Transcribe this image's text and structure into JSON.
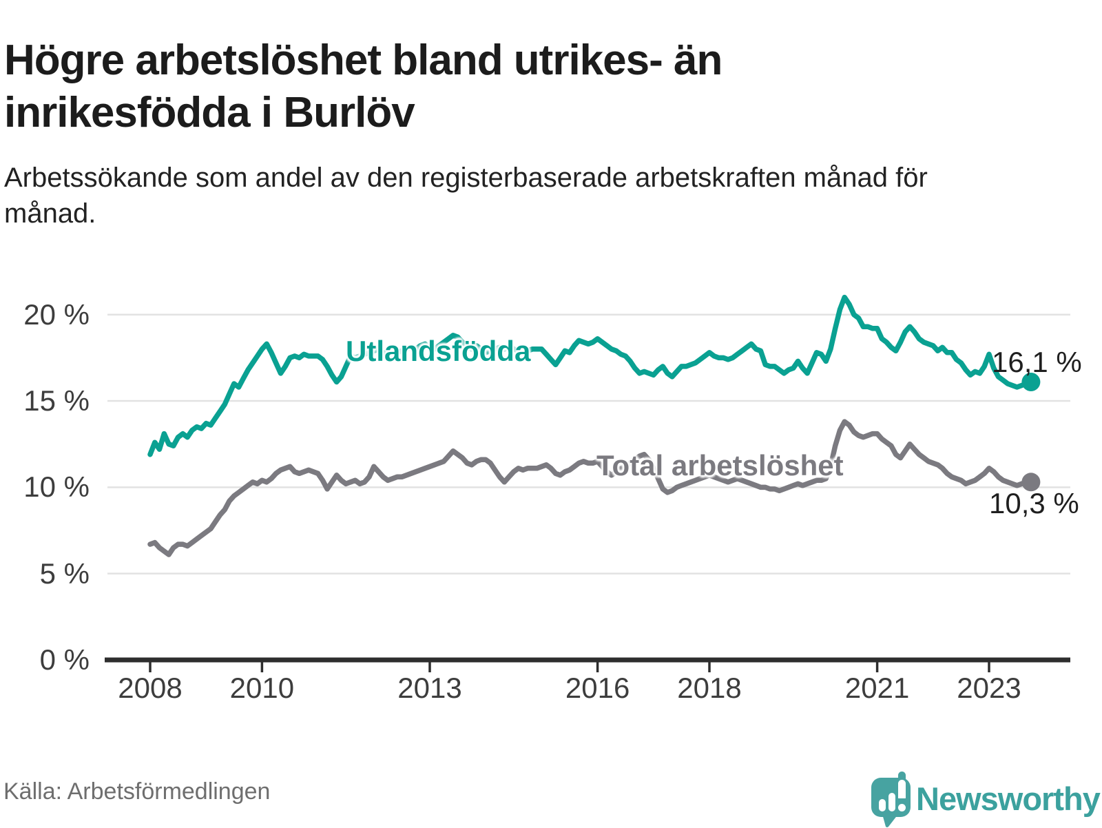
{
  "title": "Högre arbetslöshet bland utrikes- än inrikesfödda i Burlöv",
  "subtitle": "Arbetssökande som andel av den registerbaserade arbetskraften månad för månad.",
  "source": "Källa: Arbetsförmedlingen",
  "brand": {
    "name": "Newsworthy",
    "icon": "newsworthy-pin-barchart-icon",
    "color": "#3ca19e",
    "icon_color": "#47a3a1"
  },
  "colors": {
    "utlandsfodda": "#0aa192",
    "total": "#7b7a80",
    "grid": "#e2e2e2",
    "axis": "#2e2e2e",
    "title_text": "#1c1c1c",
    "tick_text": "#3d3d3d",
    "value_text": "#1f1f1f",
    "source_text": "#6e6e6e"
  },
  "chart_data": {
    "type": "line",
    "unit": "%",
    "x_start": {
      "year": 2008,
      "month": 1
    },
    "x_end": {
      "year": 2023,
      "month": 10
    },
    "ylim": [
      0,
      22
    ],
    "grid": "horizontal",
    "y_axis": [
      {
        "value": 0,
        "label": "0 %"
      },
      {
        "value": 5,
        "label": "5 %"
      },
      {
        "value": 10,
        "label": "10 %"
      },
      {
        "value": 15,
        "label": "15 %"
      },
      {
        "value": 20,
        "label": "20 %"
      }
    ],
    "x_ticks": [
      {
        "year": 2008,
        "label": "2008"
      },
      {
        "year": 2010,
        "label": "2010"
      },
      {
        "year": 2013,
        "label": "2013"
      },
      {
        "year": 2016,
        "label": "2016"
      },
      {
        "year": 2018,
        "label": "2018"
      },
      {
        "year": 2021,
        "label": "2021"
      },
      {
        "year": 2023,
        "label": "2023"
      }
    ],
    "series": [
      {
        "name": "Utlandsfödda",
        "color": "#0aa192",
        "end_label": "16,1 %",
        "end_value": 16.1,
        "values": [
          11.9,
          12.6,
          12.2,
          13.1,
          12.5,
          12.4,
          12.9,
          13.1,
          12.9,
          13.3,
          13.5,
          13.4,
          13.7,
          13.6,
          14.0,
          14.4,
          14.8,
          15.4,
          16.0,
          15.8,
          16.3,
          16.8,
          17.2,
          17.6,
          18.0,
          18.3,
          17.8,
          17.2,
          16.6,
          17.0,
          17.5,
          17.6,
          17.5,
          17.7,
          17.6,
          17.6,
          17.6,
          17.4,
          17.0,
          16.5,
          16.1,
          16.4,
          17.0,
          17.6,
          17.5,
          17.6,
          17.7,
          17.8,
          17.9,
          18.0,
          17.8,
          17.7,
          17.6,
          17.8,
          17.9,
          18.0,
          18.1,
          18.0,
          18.2,
          18.3,
          18.1,
          18.0,
          18.2,
          18.4,
          18.6,
          18.8,
          18.7,
          18.4,
          18.2,
          18.0,
          18.2,
          18.0,
          17.8,
          17.9,
          18.0,
          18.1,
          18.0,
          18.2,
          18.0,
          17.9,
          17.8,
          17.9,
          18.0,
          18.0,
          18.0,
          17.7,
          17.4,
          17.1,
          17.5,
          17.9,
          17.8,
          18.2,
          18.5,
          18.4,
          18.3,
          18.4,
          18.6,
          18.4,
          18.2,
          18.0,
          17.9,
          17.7,
          17.6,
          17.3,
          16.9,
          16.6,
          16.7,
          16.6,
          16.5,
          16.8,
          17.0,
          16.6,
          16.4,
          16.7,
          17.0,
          17.0,
          17.1,
          17.2,
          17.4,
          17.6,
          17.8,
          17.6,
          17.5,
          17.5,
          17.4,
          17.5,
          17.7,
          17.9,
          18.1,
          18.3,
          18.0,
          17.9,
          17.1,
          17.0,
          17.0,
          16.8,
          16.6,
          16.8,
          16.9,
          17.3,
          16.9,
          16.6,
          17.2,
          17.8,
          17.7,
          17.3,
          18.0,
          19.2,
          20.3,
          21.0,
          20.6,
          20.0,
          19.8,
          19.3,
          19.3,
          19.2,
          19.2,
          18.6,
          18.4,
          18.1,
          17.9,
          18.4,
          19.0,
          19.3,
          19.0,
          18.6,
          18.4,
          18.3,
          18.2,
          17.9,
          18.1,
          17.8,
          17.8,
          17.4,
          17.2,
          16.8,
          16.5,
          16.7,
          16.6,
          17.0,
          17.7,
          16.9,
          16.4,
          16.2,
          16.0,
          15.9,
          15.8,
          15.9,
          16.0,
          16.1
        ]
      },
      {
        "name": "Total arbetslöshet",
        "color": "#7b7a80",
        "end_label": "10,3 %",
        "end_value": 10.3,
        "values": [
          6.7,
          6.8,
          6.5,
          6.3,
          6.1,
          6.5,
          6.7,
          6.7,
          6.6,
          6.8,
          7.0,
          7.2,
          7.4,
          7.6,
          8.0,
          8.4,
          8.7,
          9.2,
          9.5,
          9.7,
          9.9,
          10.1,
          10.3,
          10.2,
          10.4,
          10.3,
          10.5,
          10.8,
          11.0,
          11.1,
          11.2,
          10.9,
          10.8,
          10.9,
          11.0,
          10.9,
          10.8,
          10.4,
          9.9,
          10.3,
          10.7,
          10.4,
          10.2,
          10.3,
          10.4,
          10.2,
          10.3,
          10.6,
          11.2,
          10.9,
          10.6,
          10.4,
          10.5,
          10.6,
          10.6,
          10.7,
          10.8,
          10.9,
          11.0,
          11.1,
          11.2,
          11.3,
          11.4,
          11.5,
          11.8,
          12.1,
          11.9,
          11.7,
          11.4,
          11.3,
          11.5,
          11.6,
          11.6,
          11.4,
          11.0,
          10.6,
          10.3,
          10.6,
          10.9,
          11.1,
          11.0,
          11.1,
          11.1,
          11.1,
          11.2,
          11.3,
          11.1,
          10.8,
          10.7,
          10.9,
          11.0,
          11.2,
          11.4,
          11.5,
          11.4,
          11.4,
          11.5,
          11.2,
          10.9,
          10.7,
          10.9,
          11.1,
          11.2,
          11.4,
          11.6,
          11.8,
          11.9,
          11.6,
          11.1,
          10.5,
          9.9,
          9.7,
          9.8,
          10.0,
          10.1,
          10.2,
          10.3,
          10.4,
          10.5,
          10.6,
          10.7,
          10.6,
          10.5,
          10.4,
          10.3,
          10.4,
          10.5,
          10.4,
          10.3,
          10.2,
          10.1,
          10.0,
          10.0,
          9.9,
          9.9,
          9.8,
          9.9,
          10.0,
          10.1,
          10.2,
          10.1,
          10.2,
          10.3,
          10.4,
          10.4,
          10.5,
          11.2,
          12.4,
          13.3,
          13.8,
          13.6,
          13.2,
          13.0,
          12.9,
          13.0,
          13.1,
          13.1,
          12.8,
          12.6,
          12.4,
          11.9,
          11.7,
          12.1,
          12.5,
          12.2,
          11.9,
          11.7,
          11.5,
          11.4,
          11.3,
          11.1,
          10.8,
          10.6,
          10.5,
          10.4,
          10.2,
          10.3,
          10.4,
          10.6,
          10.8,
          11.1,
          10.9,
          10.6,
          10.4,
          10.3,
          10.2,
          10.1,
          10.2,
          10.3,
          10.3
        ]
      }
    ]
  }
}
